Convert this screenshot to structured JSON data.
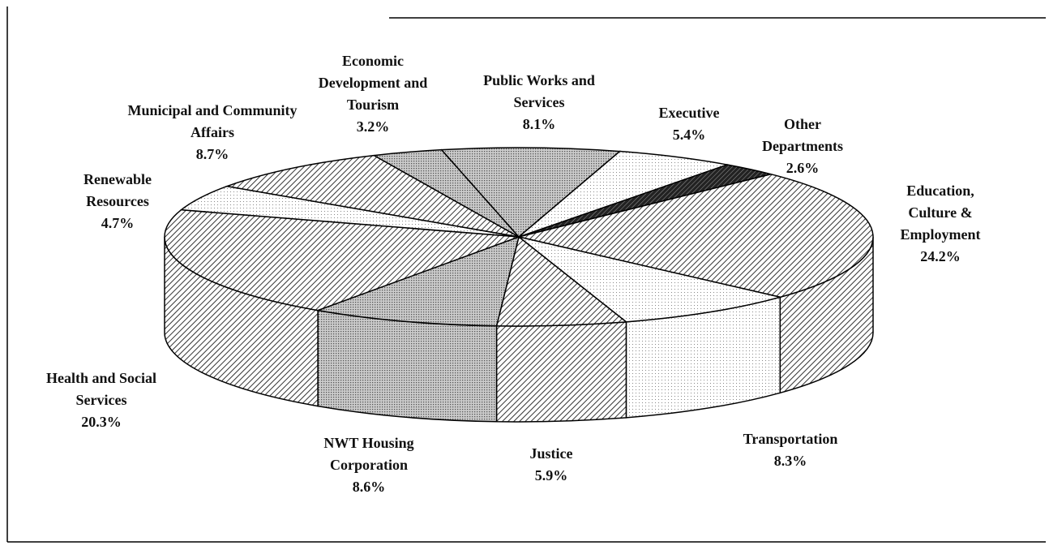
{
  "chart_data": {
    "type": "pie3d",
    "categories": [
      "Other Departments",
      "Education, Culture & Employment",
      "Transportation",
      "Justice",
      "NWT Housing Corporation",
      "Health and Social Services",
      "Renewable Resources",
      "Municipal and Community Affairs",
      "Economic Development and Tourism",
      "Public Works and Services",
      "Executive"
    ],
    "values": [
      2.6,
      24.2,
      8.3,
      5.9,
      8.6,
      20.3,
      4.7,
      8.7,
      3.2,
      8.1,
      5.4
    ],
    "value_labels": [
      "2.6%",
      "24.2%",
      "8.3%",
      "5.9%",
      "8.6%",
      "20.3%",
      "4.7%",
      "8.7%",
      "3.2%",
      "8.1%",
      "5.4%"
    ]
  }
}
